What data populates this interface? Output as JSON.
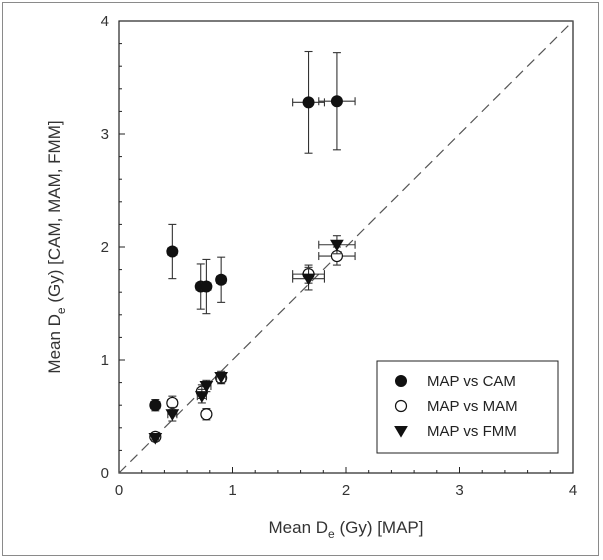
{
  "chart_data": {
    "type": "scatter",
    "title": "",
    "xlabel": {
      "prefix": "Mean D",
      "sub": "e",
      "suffix": " (Gy) [MAP]"
    },
    "ylabel": {
      "prefix": "Mean D",
      "sub": "e",
      "suffix": " (Gy) [CAM, MAM, FMM]"
    },
    "xlim": [
      0,
      4
    ],
    "ylim": [
      0,
      4
    ],
    "x_ticks": [
      0,
      1,
      2,
      3,
      4
    ],
    "y_ticks": [
      0,
      1,
      2,
      3,
      4
    ],
    "grid": false,
    "reference_line": {
      "style": "dashed",
      "from": [
        0,
        0
      ],
      "to": [
        4,
        4
      ]
    },
    "legend": {
      "placement": "bottom-right"
    },
    "series": [
      {
        "name": "MAP vs CAM",
        "marker": "filled-circle",
        "points": [
          {
            "x": 0.32,
            "y": 0.6,
            "xerr": 0.04,
            "yerr": 0.05
          },
          {
            "x": 0.47,
            "y": 1.96,
            "xerr": 0.04,
            "yerr": 0.24
          },
          {
            "x": 0.72,
            "y": 1.65,
            "xerr": 0.04,
            "yerr": 0.2
          },
          {
            "x": 0.77,
            "y": 1.65,
            "xerr": 0.04,
            "yerr": 0.24
          },
          {
            "x": 0.9,
            "y": 1.71,
            "xerr": 0.04,
            "yerr": 0.2
          },
          {
            "x": 1.67,
            "y": 3.28,
            "xerr": 0.14,
            "yerr": 0.45
          },
          {
            "x": 1.92,
            "y": 3.29,
            "xerr": 0.16,
            "yerr": 0.43
          }
        ]
      },
      {
        "name": "MAP vs MAM",
        "marker": "open-circle",
        "points": [
          {
            "x": 0.32,
            "y": 0.32,
            "xerr": 0.03,
            "yerr": 0.03
          },
          {
            "x": 0.47,
            "y": 0.62,
            "xerr": 0.04,
            "yerr": 0.06
          },
          {
            "x": 0.73,
            "y": 0.72,
            "xerr": 0.04,
            "yerr": 0.06
          },
          {
            "x": 0.77,
            "y": 0.52,
            "xerr": 0.04,
            "yerr": 0.05
          },
          {
            "x": 0.9,
            "y": 0.84,
            "xerr": 0.04,
            "yerr": 0.05
          },
          {
            "x": 1.67,
            "y": 1.76,
            "xerr": 0.14,
            "yerr": 0.08
          },
          {
            "x": 1.92,
            "y": 1.92,
            "xerr": 0.16,
            "yerr": 0.08
          }
        ]
      },
      {
        "name": "MAP vs FMM",
        "marker": "filled-triangle-down",
        "points": [
          {
            "x": 0.32,
            "y": 0.31,
            "xerr": 0.03,
            "yerr": 0.03
          },
          {
            "x": 0.47,
            "y": 0.52,
            "xerr": 0.04,
            "yerr": 0.06
          },
          {
            "x": 0.73,
            "y": 0.68,
            "xerr": 0.04,
            "yerr": 0.06
          },
          {
            "x": 0.77,
            "y": 0.77,
            "xerr": 0.04,
            "yerr": 0.05
          },
          {
            "x": 0.9,
            "y": 0.85,
            "xerr": 0.04,
            "yerr": 0.05
          },
          {
            "x": 1.67,
            "y": 1.72,
            "xerr": 0.14,
            "yerr": 0.1
          },
          {
            "x": 1.92,
            "y": 2.02,
            "xerr": 0.16,
            "yerr": 0.08
          }
        ]
      }
    ]
  }
}
